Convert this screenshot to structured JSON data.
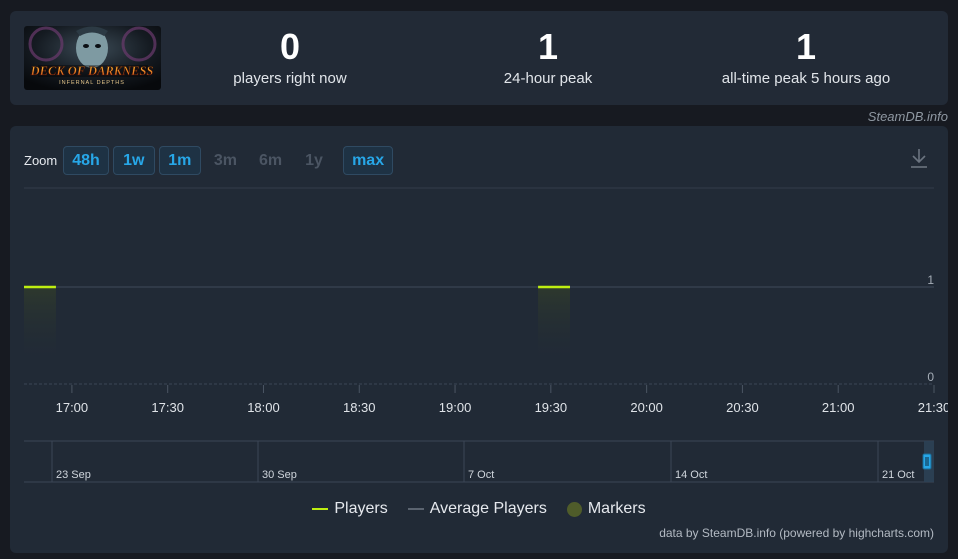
{
  "game": {
    "title_line1": "DECK OF DARKNESS",
    "title_line2": "INFERNAL DEPTHS"
  },
  "stats": [
    {
      "value": "0",
      "label": "players right now"
    },
    {
      "value": "1",
      "label": "24-hour peak"
    },
    {
      "value": "1",
      "label": "all-time peak 5 hours ago"
    }
  ],
  "site_credit": "SteamDB.info",
  "zoom": {
    "label": "Zoom",
    "buttons": [
      {
        "label": "48h",
        "enabled": true
      },
      {
        "label": "1w",
        "enabled": true
      },
      {
        "label": "1m",
        "enabled": true
      },
      {
        "label": "3m",
        "enabled": false
      },
      {
        "label": "6m",
        "enabled": false
      },
      {
        "label": "1y",
        "enabled": false
      },
      {
        "label": "max",
        "enabled": true
      }
    ]
  },
  "colors": {
    "players": "#beee11",
    "average": "#5b6470",
    "markers": "#4f5c2a",
    "accent": "#27a7e8"
  },
  "legend": [
    {
      "name": "Players",
      "kind": "line",
      "color": "#beee11"
    },
    {
      "name": "Average Players",
      "kind": "line",
      "color": "#5b6470"
    },
    {
      "name": "Markers",
      "kind": "dot",
      "color": "#4f5c2a"
    }
  ],
  "credit_bottom": "data by SteamDB.info (powered by highcharts.com)",
  "chart_data": {
    "type": "line",
    "x_ticks": [
      "17:00",
      "17:30",
      "18:00",
      "18:30",
      "19:00",
      "19:30",
      "20:00",
      "20:30",
      "21:00",
      "21:30"
    ],
    "y_ticks": [
      0,
      1
    ],
    "ylim": [
      0,
      1
    ],
    "xlim": [
      "16:45",
      "21:30"
    ],
    "series": [
      {
        "name": "Players",
        "segments": [
          {
            "start": "16:45",
            "end": "16:55",
            "value": 1
          },
          {
            "start": "19:26",
            "end": "19:36",
            "value": 1
          }
        ]
      }
    ],
    "navigator": {
      "ticks": [
        "23 Sep",
        "30 Sep",
        "7 Oct",
        "14 Oct",
        "21 Oct"
      ]
    }
  }
}
